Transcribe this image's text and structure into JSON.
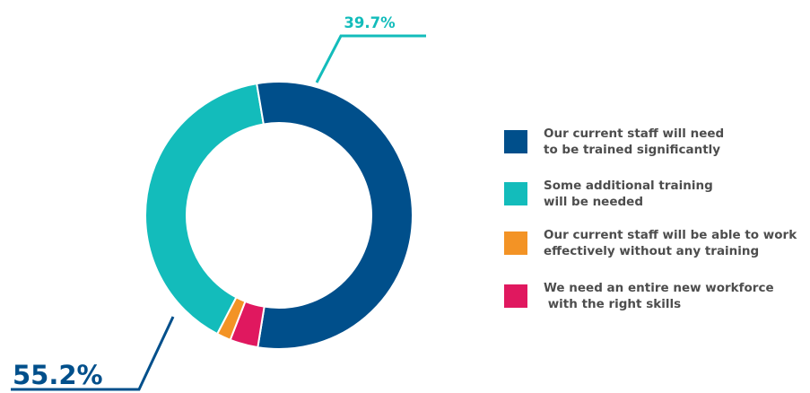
{
  "chart_data": {
    "type": "pie",
    "variant": "donut",
    "series": [
      {
        "name": "Our current staff will need\nto be trained significantly",
        "value": 55.2,
        "color": "#004f8b",
        "data_label": "55.2%"
      },
      {
        "name": "Some additional training\nwill be needed",
        "value": 39.7,
        "color": "#13bcbb",
        "data_label": "39.7%"
      },
      {
        "name": "Our current staff will be able to work\neffectively without any training",
        "value": 1.7,
        "color": "#f39325",
        "data_label": ""
      },
      {
        "name": "We need an entire new workforce\n with the right skills",
        "value": 3.4,
        "color": "#e0185f",
        "data_label": ""
      }
    ],
    "legend_position": "right"
  }
}
